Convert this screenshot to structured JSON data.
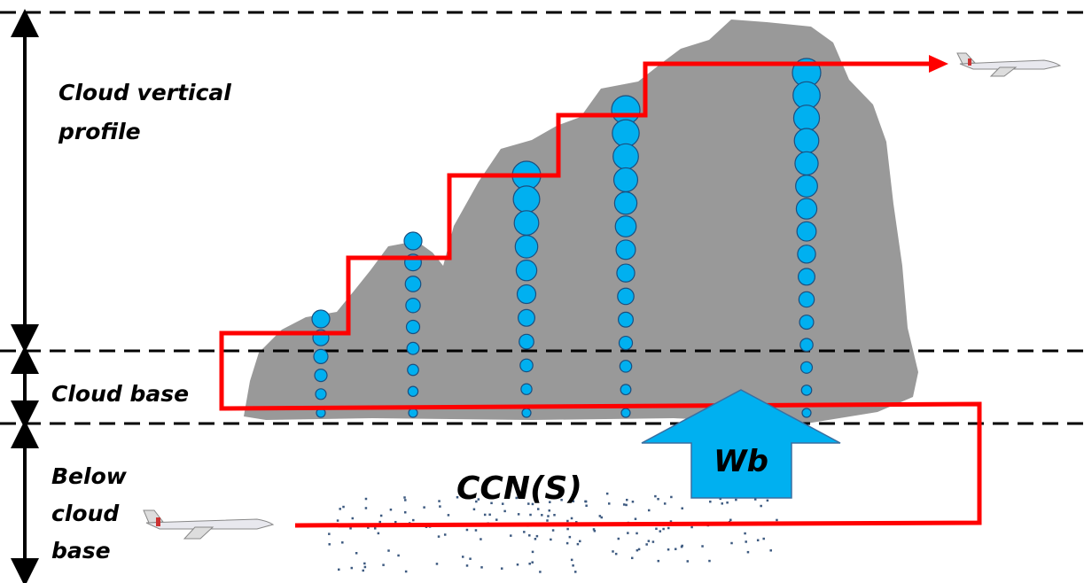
{
  "labels": {
    "cloud_vertical_profile": [
      "Cloud vertical",
      "profile"
    ],
    "cloud_base": "Cloud base",
    "below_cloud_base": [
      "Below",
      "cloud",
      "base"
    ],
    "ccn": "CCN(S)",
    "wb": "Wb"
  }
}
